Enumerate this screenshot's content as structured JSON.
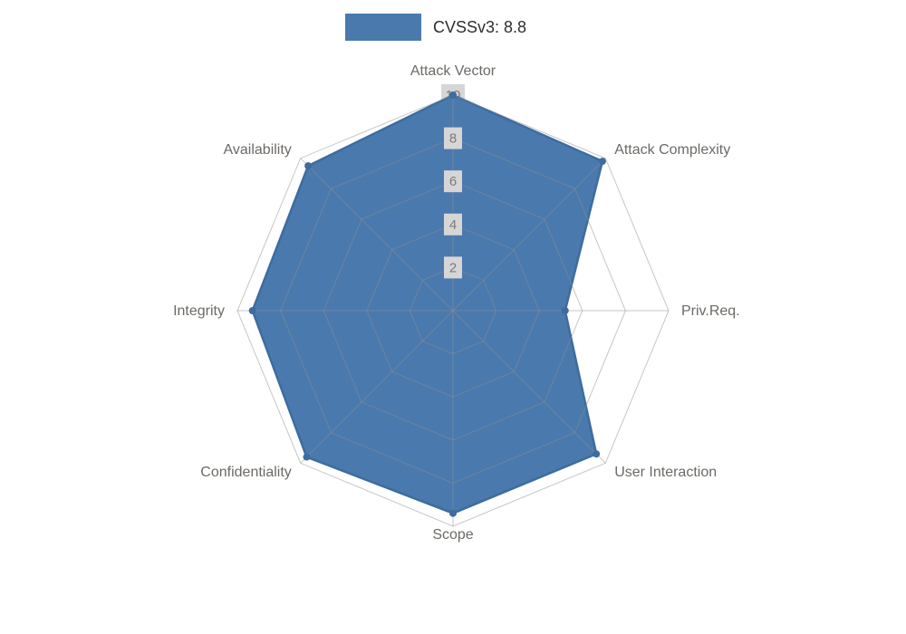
{
  "chart_data": {
    "type": "radar",
    "title": "",
    "legend_label": "CVSSv3: 8.8",
    "legend_position": "top-center",
    "categories": [
      "Attack Vector",
      "Attack Complexity",
      "Priv.Req.",
      "User Interaction",
      "Scope",
      "Confidentiality",
      "Integrity",
      "Availability"
    ],
    "series": [
      {
        "name": "CVSSv3: 8.8",
        "values": [
          10,
          9.8,
          5.2,
          9.4,
          9.4,
          9.6,
          9.3,
          9.5
        ]
      }
    ],
    "ticks": [
      2,
      4,
      6,
      8,
      10
    ],
    "rmax": 10,
    "rmin": 0,
    "grid": true,
    "colors": {
      "fill": "#4a79ad",
      "stroke": "#3e6c9f",
      "grid": "#8f8f8f",
      "tick_text": "#7b7b7b",
      "tick_bg": "#d6d6d6",
      "label_text": "#6d6a66",
      "legend_text": "#2e2e2e",
      "background": "#ffffff"
    }
  }
}
